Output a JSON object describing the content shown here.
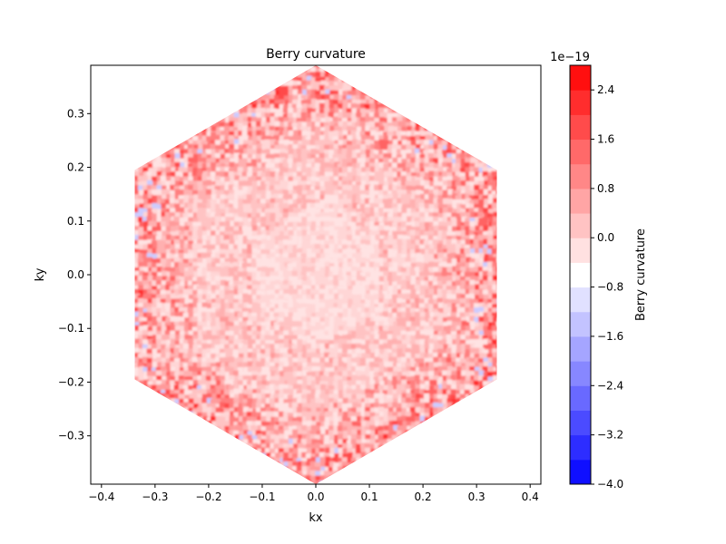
{
  "chart_data": {
    "type": "heatmap",
    "title": "Berry curvature",
    "xlabel": "kx",
    "ylabel": "ky",
    "xlim": [
      -0.42,
      0.42
    ],
    "ylim": [
      -0.39,
      0.39
    ],
    "xticks": [
      -0.4,
      -0.3,
      -0.2,
      -0.1,
      0.0,
      0.1,
      0.2,
      0.3,
      0.4
    ],
    "yticks": [
      -0.3,
      -0.2,
      -0.1,
      0.0,
      0.1,
      0.2,
      0.3
    ],
    "xtick_labels": [
      "−0.4",
      "−0.3",
      "−0.2",
      "−0.1",
      "0.0",
      "0.1",
      "0.2",
      "0.3",
      "0.4"
    ],
    "ytick_labels": [
      "−0.3",
      "−0.2",
      "−0.1",
      "0.0",
      "0.1",
      "0.2",
      "0.3"
    ],
    "region": "hexagon (Brillouin zone), vertex radius ≈ 0.39 along ky, flat edges at kx = ±0.34",
    "pattern": "positive curvature everywhere, light pink near center, stronger red speckle toward hexagon edges, sparse faint blue specks at edges",
    "colorbar": {
      "label": "Berry curvature",
      "scale_label": "1e−19",
      "min": -4.0,
      "max": 2.8,
      "levels_step": 0.4,
      "colormap": "bwr",
      "tick_values": [
        -4.0,
        -3.2,
        -2.4,
        -1.6,
        -0.8,
        0.0,
        0.8,
        1.6,
        2.4
      ],
      "tick_labels": [
        "−4.0",
        "−3.2",
        "−2.4",
        "−1.6",
        "−0.8",
        "0.0",
        "0.8",
        "1.6",
        "2.4"
      ]
    }
  },
  "colors": {
    "negative_end": "#0000ff",
    "neutral": "#ffffff",
    "positive_end": "#ff0000"
  }
}
